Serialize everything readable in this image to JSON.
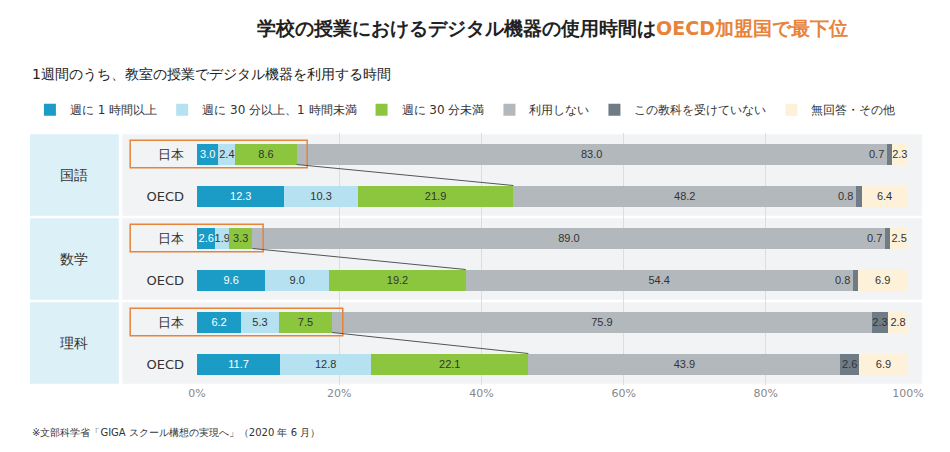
{
  "chart_data": {
    "type": "bar",
    "orientation": "horizontal",
    "stacked": true,
    "data_labels": true,
    "grid": true,
    "legend": "top",
    "title": "学校の授業におけるデジタル機器の使用時間はOECD加盟国で最下位",
    "title_highlight": "OECD加盟国で最下位",
    "subtitle": "1週間のうち、教室の授業でデジタル機器を利用する時間",
    "note": "※文部科学省「GIGA スクール構想の実現へ」（2020 年 6 月）",
    "categories": [
      "日本",
      "OECD",
      "日本",
      "OECD",
      "日本",
      "OECD"
    ],
    "category_groups": [
      "国語",
      "国語",
      "数学",
      "数学",
      "理科",
      "理科"
    ],
    "xlim": [
      0,
      100
    ],
    "xticks": [
      {
        "value": 0,
        "label": "0%"
      },
      {
        "value": 20,
        "label": "20%"
      },
      {
        "value": 40,
        "label": "40%"
      },
      {
        "value": 60,
        "label": "60%"
      },
      {
        "value": 80,
        "label": "80%"
      },
      {
        "value": 100,
        "label": "100%"
      }
    ],
    "series": [
      {
        "name": "週に 1 時間以上",
        "color": "#1a9cc6",
        "values": [
          3.0,
          12.3,
          2.6,
          9.6,
          6.2,
          11.7
        ],
        "value_labels": [
          "3.0",
          "12.3",
          "2.6",
          "9.6",
          "6.2",
          "11.7"
        ]
      },
      {
        "name": "週に 30 分以上、1 時間未満",
        "color": "#b5e1f0",
        "values": [
          2.4,
          10.3,
          1.9,
          9.0,
          5.3,
          12.8
        ],
        "value_labels": [
          "2.4",
          "10.3",
          "1.9",
          "9.0",
          "5.3",
          "12.8"
        ]
      },
      {
        "name": "週に 30 分未満",
        "color": "#8cc63f",
        "values": [
          8.6,
          21.9,
          3.3,
          19.2,
          7.5,
          22.1
        ],
        "value_labels": [
          "8.6",
          "21.9",
          "3.3",
          "19.2",
          "7.5",
          "22.1"
        ]
      },
      {
        "name": "利用しない",
        "color": "#b3b8bd",
        "values": [
          83.0,
          48.2,
          89.0,
          54.4,
          75.9,
          43.9
        ],
        "value_labels": [
          "83.0",
          "48.2",
          "89.0",
          "54.4",
          "75.9",
          "43.9"
        ]
      },
      {
        "name": "この教科を受けていない",
        "color": "#6f7b85",
        "values": [
          0.7,
          0.8,
          0.7,
          0.8,
          2.3,
          2.6
        ],
        "value_labels": [
          "0.7",
          "0.8",
          "0.7",
          "0.8",
          "2.3",
          "2.6"
        ]
      },
      {
        "name": "無回答・その他",
        "color": "#fdf2d9",
        "values": [
          2.3,
          6.4,
          2.5,
          6.9,
          2.8,
          6.9
        ],
        "value_labels": [
          "2.3",
          "6.4",
          "2.5",
          "6.9",
          "2.8",
          "6.9"
        ]
      }
    ]
  }
}
